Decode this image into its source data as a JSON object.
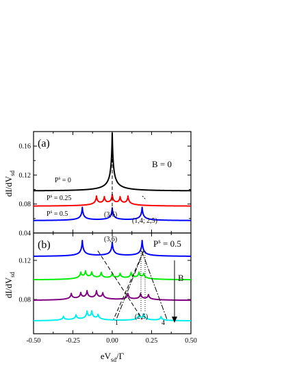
{
  "chart_data": [
    {
      "panel_label": "(a)",
      "type": "line",
      "ylabel": "dI/dV",
      "ylabel_sub": "sd",
      "xlim": [
        -0.5,
        0.5
      ],
      "ylim": [
        0.04,
        0.18
      ],
      "yticks": [
        0.04,
        0.08,
        0.12,
        0.16
      ],
      "ytick_labels": [
        "0.04",
        "0.08",
        "0.12",
        "0.16"
      ],
      "xticks": [
        -0.5,
        -0.25,
        0,
        0.25,
        0.5
      ],
      "condition": "B = 0",
      "series": [
        {
          "name": "P = 0",
          "name_base": "P",
          "name_sup": "s",
          "name_rest": " = 0",
          "color": "#000000",
          "baseline": 0.098,
          "peaks": [
            [
              0,
              0.08
            ]
          ]
        },
        {
          "name": "P = 0.25",
          "name_base": "P",
          "name_sup": "s",
          "name_rest": " = 0.25",
          "color": "#ff0000",
          "baseline": 0.077,
          "peaks": [
            [
              -0.1,
              0.012
            ],
            [
              -0.05,
              0.01
            ],
            [
              0,
              0.013
            ],
            [
              0.05,
              0.01
            ],
            [
              0.1,
              0.012
            ]
          ]
        },
        {
          "name": "P = 0.5",
          "name_base": "P",
          "name_sup": "s",
          "name_rest": " = 0.5",
          "color": "#0000ff",
          "baseline": 0.057,
          "peaks": [
            [
              -0.19,
              0.018
            ],
            [
              0,
              0.017
            ],
            [
              0.19,
              0.018
            ]
          ]
        }
      ],
      "annotations": [
        "(3,6)",
        "(1,4; 2,5)"
      ]
    },
    {
      "panel_label": "(b)",
      "type": "line",
      "ylabel": "dI/dV",
      "ylabel_sub": "sd",
      "xlim": [
        -0.5,
        0.5
      ],
      "ylim": [
        0.045,
        0.148
      ],
      "yticks": [
        0.08,
        0.12
      ],
      "ytick_labels": [
        "0.08",
        "0.12"
      ],
      "xticks": [
        -0.5,
        -0.25,
        0,
        0.25,
        0.5
      ],
      "xtick_labels": [
        "-0.50",
        "-0.25",
        "0.00",
        "0.25",
        "0.50"
      ],
      "xlabel": "eV",
      "xlabel_sub": "sd",
      "xlabel_rest": "/Γ",
      "condition_base": "P",
      "condition_sup": "s",
      "condition_rest": " = 0.5",
      "arrow_label": "B",
      "series": [
        {
          "color": "#0000ff",
          "baseline": 0.124,
          "peaks": [
            [
              -0.19,
              0.016
            ],
            [
              0,
              0.014
            ],
            [
              0.19,
              0.016
            ]
          ]
        },
        {
          "color": "#00ee00",
          "baseline": 0.1,
          "peaks": [
            [
              -0.2,
              0.006
            ],
            [
              -0.17,
              0.007
            ],
            [
              -0.13,
              0.006
            ],
            [
              -0.07,
              0.006
            ],
            [
              0,
              0.005
            ],
            [
              0.05,
              0.005
            ],
            [
              0.12,
              0.006
            ],
            [
              0.17,
              0.006
            ],
            [
              0.2,
              0.005
            ]
          ]
        },
        {
          "color": "#800080",
          "baseline": 0.079,
          "peaks": [
            [
              -0.26,
              0.006
            ],
            [
              -0.2,
              0.006
            ],
            [
              -0.16,
              0.008
            ],
            [
              -0.1,
              0.008
            ],
            [
              -0.06,
              0.006
            ],
            [
              0.1,
              0.006
            ],
            [
              0.18,
              0.006
            ],
            [
              0.23,
              0.005
            ]
          ]
        },
        {
          "color": "#00eeee",
          "baseline": 0.058,
          "peaks": [
            [
              -0.31,
              0.004
            ],
            [
              -0.23,
              0.005
            ],
            [
              -0.16,
              0.008
            ],
            [
              -0.13,
              0.008
            ],
            [
              -0.09,
              0.005
            ],
            [
              0.17,
              0.006
            ],
            [
              0.2,
              0.006
            ],
            [
              0.31,
              0.004
            ]
          ]
        }
      ],
      "annotations": [
        "(3,6)",
        "(2,5)",
        "1",
        "4"
      ]
    }
  ]
}
